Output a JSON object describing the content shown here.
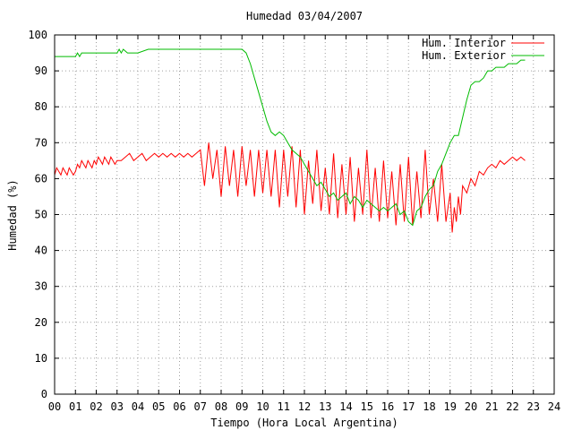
{
  "chart_data": {
    "type": "line",
    "title": "Humedad 03/04/2007",
    "xlabel": "Tiempo (Hora Local Argentina)",
    "ylabel": "Humedad (%)",
    "xlim": [
      0,
      24
    ],
    "ylim": [
      0,
      100
    ],
    "x_tick_labels": [
      "00",
      "01",
      "02",
      "03",
      "04",
      "05",
      "06",
      "07",
      "08",
      "09",
      "10",
      "11",
      "12",
      "13",
      "14",
      "15",
      "16",
      "17",
      "18",
      "19",
      "20",
      "21",
      "22",
      "23",
      "24"
    ],
    "y_tick_labels": [
      "0",
      "10",
      "20",
      "30",
      "40",
      "50",
      "60",
      "70",
      "80",
      "90",
      "100"
    ],
    "grid": true,
    "legend_position": "top-right",
    "series": [
      {
        "name": "Hum. Interior",
        "color": "#ff0000",
        "x": [
          0.0,
          0.1,
          0.2,
          0.3,
          0.4,
          0.5,
          0.6,
          0.7,
          0.8,
          0.9,
          1.0,
          1.1,
          1.2,
          1.3,
          1.4,
          1.5,
          1.6,
          1.7,
          1.8,
          1.9,
          2.0,
          2.1,
          2.2,
          2.3,
          2.4,
          2.5,
          2.6,
          2.7,
          2.8,
          2.9,
          3.0,
          3.2,
          3.4,
          3.6,
          3.8,
          4.0,
          4.2,
          4.4,
          4.6,
          4.8,
          5.0,
          5.2,
          5.4,
          5.6,
          5.8,
          6.0,
          6.2,
          6.4,
          6.6,
          6.8,
          7.0,
          7.2,
          7.4,
          7.6,
          7.8,
          8.0,
          8.2,
          8.4,
          8.6,
          8.8,
          9.0,
          9.2,
          9.4,
          9.6,
          9.8,
          10.0,
          10.2,
          10.4,
          10.6,
          10.8,
          11.0,
          11.2,
          11.4,
          11.6,
          11.8,
          12.0,
          12.2,
          12.4,
          12.6,
          12.8,
          13.0,
          13.2,
          13.4,
          13.6,
          13.8,
          14.0,
          14.2,
          14.4,
          14.6,
          14.8,
          15.0,
          15.2,
          15.4,
          15.6,
          15.8,
          16.0,
          16.2,
          16.4,
          16.6,
          16.8,
          17.0,
          17.2,
          17.4,
          17.6,
          17.8,
          18.0,
          18.2,
          18.4,
          18.6,
          18.8,
          19.0,
          19.1,
          19.2,
          19.3,
          19.4,
          19.5,
          19.6,
          19.8,
          20.0,
          20.2,
          20.4,
          20.6,
          20.8,
          21.0,
          21.2,
          21.4,
          21.6,
          21.8,
          22.0,
          22.2,
          22.4,
          22.6
        ],
        "y": [
          61,
          63,
          62,
          61,
          63,
          62,
          61,
          63,
          62,
          61,
          62,
          64,
          63,
          65,
          64,
          63,
          65,
          64,
          63,
          65,
          64,
          66,
          65,
          64,
          66,
          65,
          64,
          66,
          65,
          64,
          65,
          65,
          66,
          67,
          65,
          66,
          67,
          65,
          66,
          67,
          66,
          67,
          66,
          67,
          66,
          67,
          66,
          67,
          66,
          67,
          68,
          58,
          70,
          60,
          68,
          55,
          69,
          58,
          68,
          55,
          69,
          58,
          68,
          55,
          68,
          56,
          68,
          55,
          68,
          52,
          68,
          55,
          69,
          52,
          68,
          50,
          65,
          53,
          68,
          51,
          63,
          50,
          67,
          49,
          64,
          50,
          66,
          48,
          63,
          50,
          68,
          49,
          63,
          48,
          65,
          49,
          62,
          47,
          64,
          48,
          66,
          47,
          62,
          49,
          68,
          50,
          60,
          48,
          64,
          48,
          56,
          45,
          52,
          48,
          55,
          50,
          58,
          56,
          60,
          58,
          62,
          61,
          63,
          64,
          63,
          65,
          64,
          65,
          66,
          65,
          66,
          65
        ]
      },
      {
        "name": "Hum. Exterior",
        "color": "#00bb00",
        "x": [
          0.0,
          1.0,
          1.1,
          1.2,
          1.3,
          1.5,
          2.0,
          3.0,
          3.1,
          3.2,
          3.3,
          3.5,
          4.0,
          4.5,
          5.0,
          6.0,
          7.0,
          8.0,
          9.0,
          9.2,
          9.4,
          9.6,
          9.8,
          10.0,
          10.2,
          10.4,
          10.6,
          10.8,
          11.0,
          11.2,
          11.4,
          11.6,
          11.8,
          12.0,
          12.2,
          12.4,
          12.6,
          12.8,
          13.0,
          13.2,
          13.4,
          13.6,
          13.8,
          14.0,
          14.2,
          14.4,
          14.6,
          14.8,
          15.0,
          15.2,
          15.4,
          15.6,
          15.8,
          16.0,
          16.2,
          16.4,
          16.6,
          16.8,
          17.0,
          17.2,
          17.4,
          17.6,
          17.8,
          18.0,
          18.2,
          18.4,
          18.6,
          18.8,
          19.0,
          19.2,
          19.4,
          19.6,
          19.8,
          20.0,
          20.2,
          20.4,
          20.6,
          20.8,
          21.0,
          21.2,
          21.4,
          21.6,
          21.8,
          22.0,
          22.2,
          22.4,
          22.6
        ],
        "y": [
          94,
          94,
          95,
          94,
          95,
          95,
          95,
          95,
          96,
          95,
          96,
          95,
          95,
          96,
          96,
          96,
          96,
          96,
          96,
          95,
          92,
          88,
          84,
          80,
          76,
          73,
          72,
          73,
          72,
          70,
          68,
          67,
          66,
          64,
          62,
          60,
          58,
          59,
          57,
          55,
          56,
          54,
          55,
          56,
          53,
          55,
          54,
          52,
          54,
          53,
          52,
          51,
          52,
          51,
          52,
          53,
          50,
          51,
          48,
          47,
          51,
          52,
          55,
          57,
          58,
          62,
          64,
          67,
          70,
          72,
          72,
          77,
          82,
          86,
          87,
          87,
          88,
          90,
          90,
          91,
          91,
          91,
          92,
          92,
          92,
          93,
          93
        ]
      }
    ]
  }
}
